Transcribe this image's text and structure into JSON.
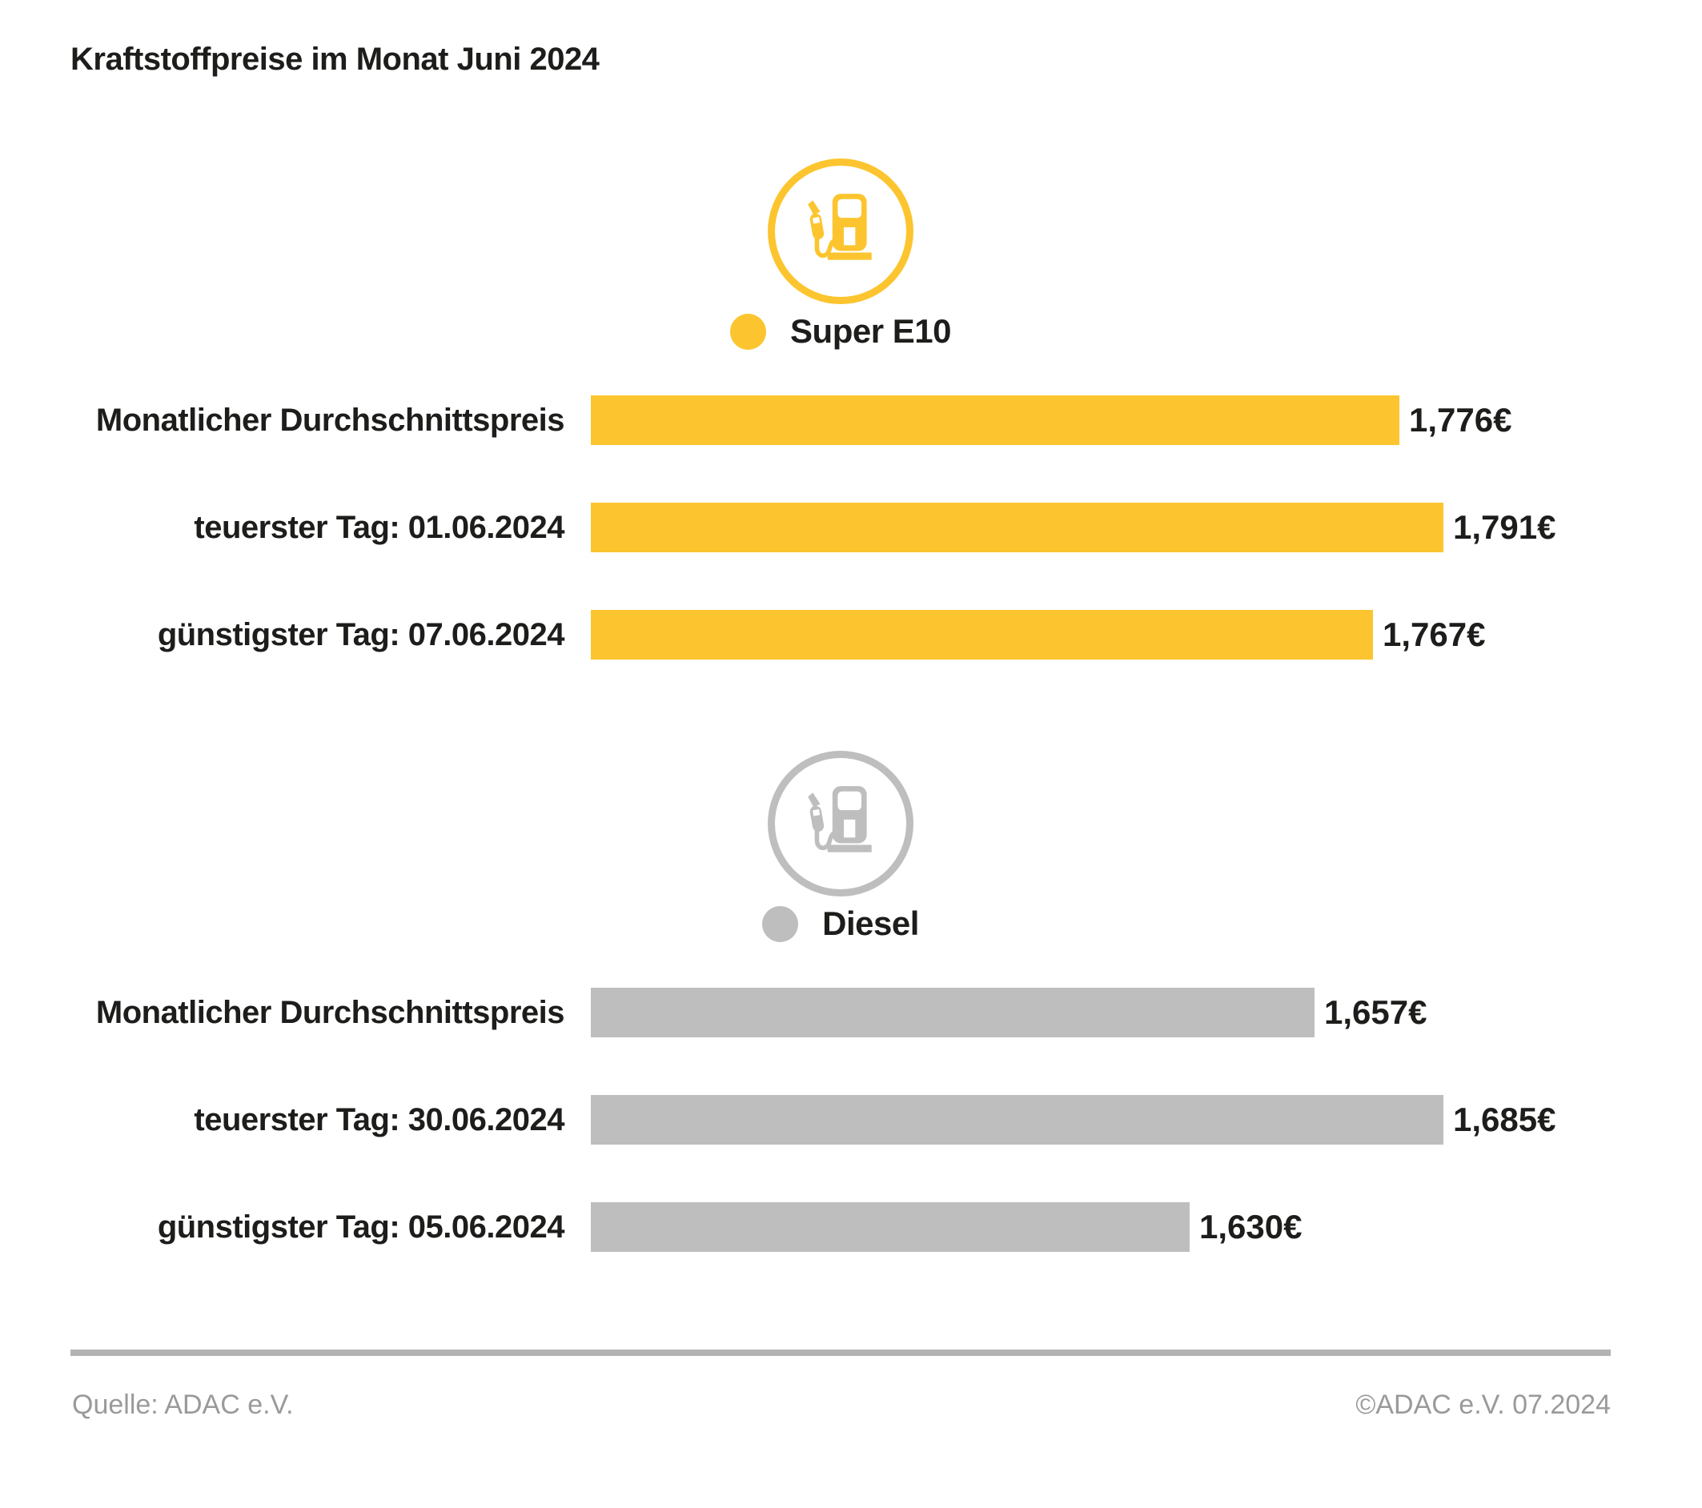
{
  "title": "Kraftstoffpreise im Monat Juni 2024",
  "footer": {
    "source": "Quelle: ADAC e.V.",
    "copyright": "©ADAC e.V. 07.2024"
  },
  "colors": {
    "super_e10_yellow": "#FCC52F",
    "diesel_gray": "#BEBEBE",
    "text_dark": "#1d1d1b",
    "footer_gray": "#9a9a9a",
    "divider_gray": "#b3b3b3"
  },
  "chart_data": {
    "type": "bar",
    "orientation": "horizontal",
    "axis_min": 1.5,
    "grid": false,
    "legend_position": "above-each-group",
    "groups": [
      {
        "name": "Super E10",
        "color": "#FCC52F",
        "icon": "fuel-pump-icon",
        "rows": [
          {
            "label": "Monatlicher Durchschnittspreis",
            "value": 1.776,
            "value_label": "1,776€"
          },
          {
            "label": "teuerster Tag: 01.06.2024",
            "value": 1.791,
            "value_label": "1,791€"
          },
          {
            "label": "günstigster Tag: 07.06.2024",
            "value": 1.767,
            "value_label": "1,767€"
          }
        ]
      },
      {
        "name": "Diesel",
        "color": "#BEBEBE",
        "icon": "fuel-pump-icon",
        "rows": [
          {
            "label": "Monatlicher Durchschnittspreis",
            "value": 1.657,
            "value_label": "1,657€"
          },
          {
            "label": "teuerster Tag: 30.06.2024",
            "value": 1.685,
            "value_label": "1,685€"
          },
          {
            "label": "günstigster Tag: 05.06.2024",
            "value": 1.63,
            "value_label": "1,630€"
          }
        ]
      }
    ]
  }
}
